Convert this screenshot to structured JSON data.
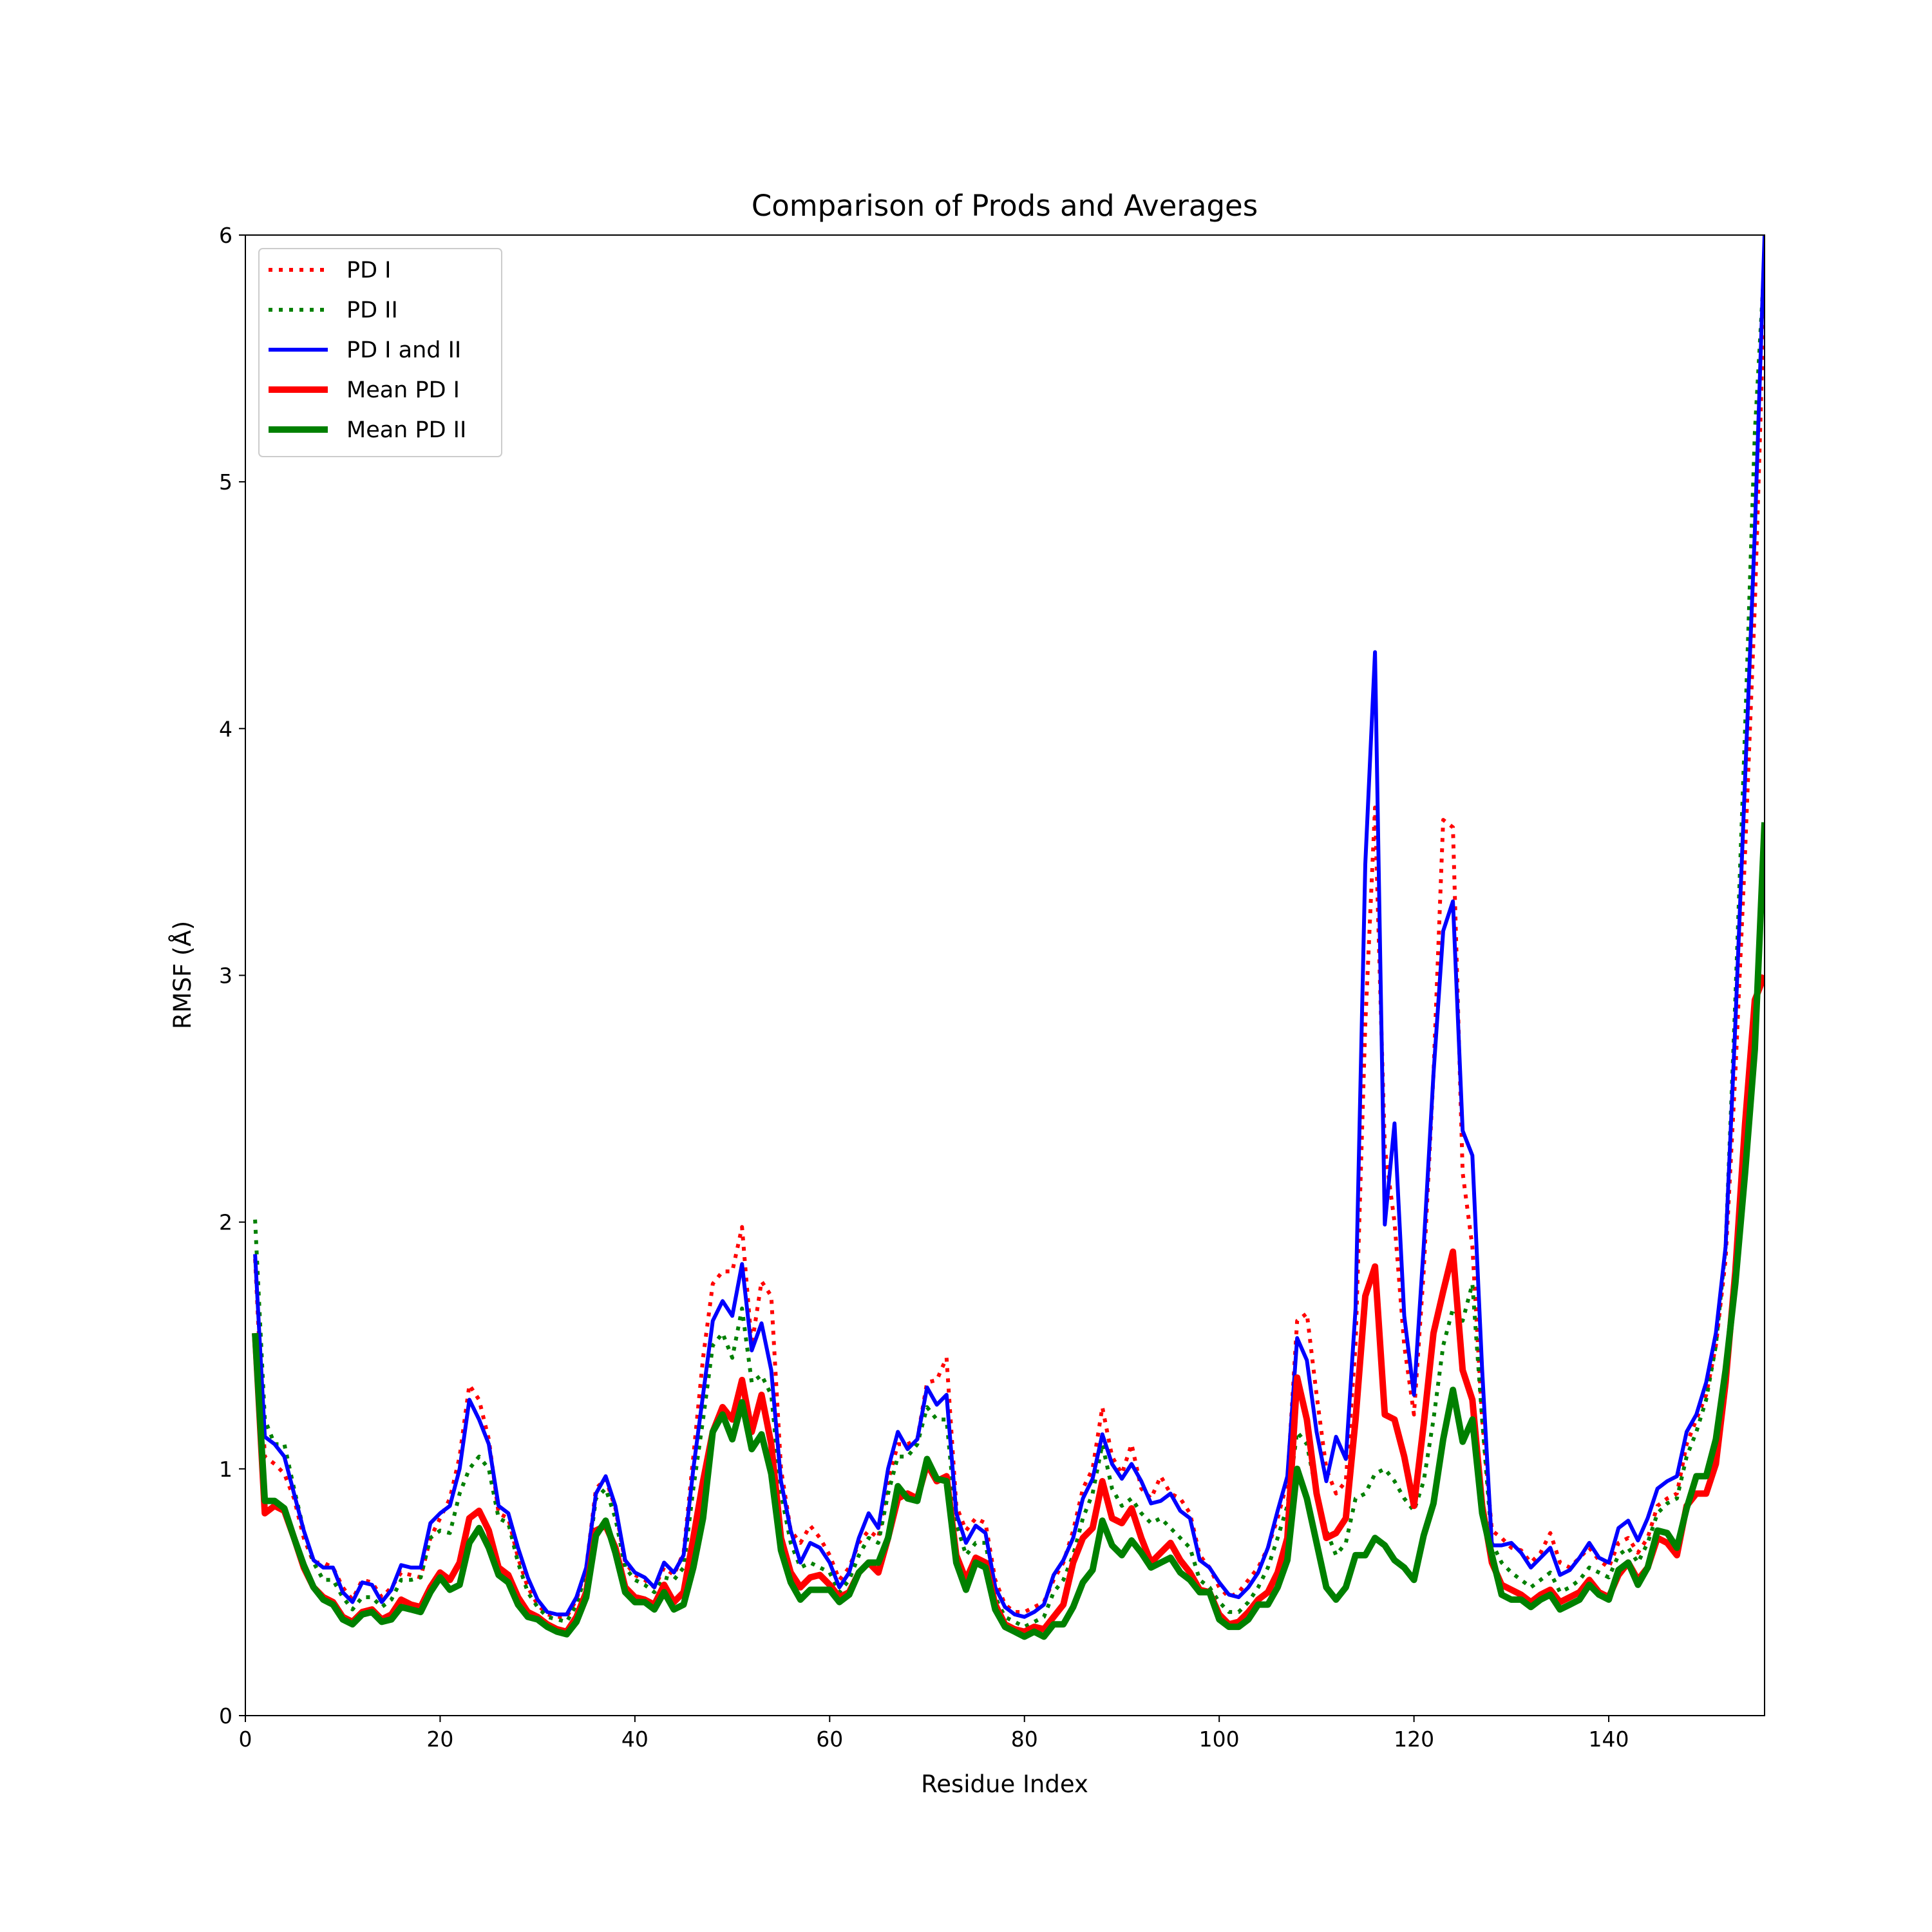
{
  "chart_data": {
    "type": "line",
    "title": "Comparison of Prods and Averages",
    "xlabel": "Residue Index",
    "ylabel": "RMSF (Å)",
    "xlim": [
      0,
      156
    ],
    "ylim": [
      0,
      6
    ],
    "xticks": [
      0,
      20,
      40,
      60,
      80,
      100,
      120,
      140
    ],
    "yticks": [
      0,
      1,
      2,
      3,
      4,
      5,
      6
    ],
    "grid": false,
    "legend_position": "top-left",
    "x_start": 1,
    "series": [
      {
        "name": "PD I",
        "color": "#ff0000",
        "style": "dotted",
        "width": "thin",
        "values": [
          1.85,
          1.05,
          1.02,
          0.98,
          0.88,
          0.72,
          0.62,
          0.62,
          0.6,
          0.52,
          0.47,
          0.55,
          0.54,
          0.48,
          0.52,
          0.58,
          0.57,
          0.56,
          0.72,
          0.8,
          0.88,
          1.05,
          1.34,
          1.28,
          1.12,
          0.82,
          0.8,
          0.64,
          0.52,
          0.45,
          0.41,
          0.4,
          0.4,
          0.47,
          0.6,
          0.92,
          0.96,
          0.84,
          0.62,
          0.57,
          0.55,
          0.52,
          0.6,
          0.57,
          0.66,
          1.05,
          1.45,
          1.75,
          1.8,
          1.8,
          1.98,
          1.5,
          1.76,
          1.7,
          1.0,
          0.75,
          0.7,
          0.77,
          0.72,
          0.65,
          0.55,
          0.6,
          0.7,
          0.75,
          0.72,
          0.95,
          1.1,
          1.1,
          1.12,
          1.35,
          1.36,
          1.45,
          0.85,
          0.75,
          0.8,
          0.78,
          0.55,
          0.45,
          0.42,
          0.42,
          0.44,
          0.46,
          0.55,
          0.62,
          0.75,
          0.92,
          1.0,
          1.25,
          1.05,
          0.98,
          1.1,
          0.92,
          0.88,
          0.97,
          0.9,
          0.88,
          0.82,
          0.65,
          0.6,
          0.52,
          0.48,
          0.5,
          0.55,
          0.6,
          0.68,
          0.8,
          0.95,
          1.6,
          1.63,
          1.3,
          1.0,
          0.9,
          0.95,
          1.5,
          2.8,
          3.68,
          2.3,
          2.0,
          1.5,
          1.22,
          1.8,
          2.6,
          3.63,
          3.6,
          2.2,
          1.9,
          1.2,
          0.75,
          0.72,
          0.68,
          0.67,
          0.62,
          0.66,
          0.74,
          0.62,
          0.6,
          0.64,
          0.68,
          0.63,
          0.6,
          0.7,
          0.72,
          0.66,
          0.72,
          0.85,
          0.88,
          0.9,
          1.1,
          1.2,
          1.3,
          1.5,
          1.85,
          2.6,
          3.5,
          4.5,
          5.8
        ]
      },
      {
        "name": "PD II",
        "color": "#008000",
        "style": "dotted",
        "width": "thin",
        "values": [
          2.01,
          1.2,
          1.1,
          1.1,
          0.92,
          0.75,
          0.62,
          0.55,
          0.55,
          0.48,
          0.43,
          0.48,
          0.48,
          0.44,
          0.47,
          0.55,
          0.55,
          0.56,
          0.72,
          0.75,
          0.74,
          0.9,
          1.0,
          1.05,
          1.0,
          0.8,
          0.78,
          0.62,
          0.5,
          0.44,
          0.4,
          0.39,
          0.38,
          0.45,
          0.58,
          0.88,
          0.92,
          0.8,
          0.6,
          0.55,
          0.53,
          0.5,
          0.56,
          0.55,
          0.6,
          0.92,
          1.2,
          1.5,
          1.55,
          1.45,
          1.65,
          1.35,
          1.38,
          1.3,
          0.9,
          0.7,
          0.6,
          0.62,
          0.6,
          0.58,
          0.5,
          0.55,
          0.65,
          0.72,
          0.7,
          0.9,
          1.05,
          1.05,
          1.1,
          1.25,
          1.2,
          1.2,
          0.78,
          0.65,
          0.7,
          0.7,
          0.48,
          0.4,
          0.38,
          0.36,
          0.38,
          0.4,
          0.5,
          0.55,
          0.65,
          0.8,
          0.9,
          1.1,
          0.92,
          0.85,
          0.88,
          0.82,
          0.78,
          0.8,
          0.76,
          0.72,
          0.68,
          0.55,
          0.52,
          0.46,
          0.42,
          0.42,
          0.46,
          0.52,
          0.6,
          0.72,
          0.85,
          1.15,
          1.1,
          0.9,
          0.75,
          0.65,
          0.7,
          0.88,
          0.9,
          0.98,
          1.0,
          0.95,
          0.88,
          0.83,
          0.95,
          1.2,
          1.5,
          1.65,
          1.6,
          1.75,
          1.2,
          0.7,
          0.62,
          0.58,
          0.55,
          0.52,
          0.55,
          0.58,
          0.5,
          0.52,
          0.55,
          0.6,
          0.58,
          0.56,
          0.65,
          0.68,
          0.62,
          0.7,
          0.82,
          0.86,
          0.88,
          1.05,
          1.15,
          1.28,
          1.5,
          1.9,
          2.9,
          4.0,
          5.2,
          5.9
        ]
      },
      {
        "name": "PD I and II",
        "color": "#0000ff",
        "style": "solid",
        "width": "medium",
        "values": [
          1.87,
          1.13,
          1.1,
          1.05,
          0.9,
          0.75,
          0.63,
          0.6,
          0.6,
          0.5,
          0.46,
          0.54,
          0.53,
          0.46,
          0.51,
          0.61,
          0.6,
          0.6,
          0.78,
          0.82,
          0.85,
          1.0,
          1.28,
          1.2,
          1.1,
          0.85,
          0.82,
          0.68,
          0.56,
          0.47,
          0.42,
          0.41,
          0.41,
          0.48,
          0.6,
          0.9,
          0.97,
          0.85,
          0.63,
          0.58,
          0.56,
          0.52,
          0.62,
          0.58,
          0.65,
          1.0,
          1.3,
          1.6,
          1.68,
          1.62,
          1.83,
          1.48,
          1.59,
          1.4,
          0.95,
          0.75,
          0.62,
          0.7,
          0.68,
          0.62,
          0.52,
          0.58,
          0.72,
          0.82,
          0.76,
          1.0,
          1.15,
          1.08,
          1.12,
          1.33,
          1.26,
          1.3,
          0.82,
          0.7,
          0.77,
          0.74,
          0.52,
          0.44,
          0.41,
          0.4,
          0.42,
          0.45,
          0.57,
          0.63,
          0.72,
          0.88,
          0.96,
          1.14,
          1.02,
          0.96,
          1.02,
          0.95,
          0.86,
          0.87,
          0.9,
          0.83,
          0.8,
          0.63,
          0.6,
          0.54,
          0.49,
          0.48,
          0.52,
          0.58,
          0.68,
          0.83,
          0.97,
          1.53,
          1.44,
          1.15,
          0.95,
          1.13,
          1.04,
          1.65,
          3.45,
          4.31,
          1.99,
          2.4,
          1.62,
          1.3,
          1.9,
          2.6,
          3.18,
          3.3,
          2.37,
          2.27,
          1.4,
          0.69,
          0.69,
          0.7,
          0.66,
          0.6,
          0.64,
          0.68,
          0.57,
          0.59,
          0.64,
          0.7,
          0.64,
          0.62,
          0.76,
          0.79,
          0.71,
          0.8,
          0.92,
          0.95,
          0.97,
          1.15,
          1.22,
          1.35,
          1.55,
          1.9,
          2.8,
          3.8,
          4.8,
          6.0
        ]
      },
      {
        "name": "Mean PD I",
        "color": "#ff0000",
        "style": "solid",
        "width": "thick",
        "values": [
          1.55,
          0.82,
          0.85,
          0.83,
          0.72,
          0.6,
          0.52,
          0.48,
          0.46,
          0.4,
          0.38,
          0.42,
          0.43,
          0.39,
          0.41,
          0.47,
          0.45,
          0.44,
          0.52,
          0.58,
          0.55,
          0.62,
          0.8,
          0.83,
          0.75,
          0.6,
          0.57,
          0.48,
          0.42,
          0.4,
          0.37,
          0.35,
          0.34,
          0.4,
          0.5,
          0.75,
          0.77,
          0.68,
          0.52,
          0.48,
          0.47,
          0.45,
          0.53,
          0.46,
          0.5,
          0.72,
          0.95,
          1.15,
          1.25,
          1.2,
          1.36,
          1.15,
          1.3,
          1.1,
          0.72,
          0.58,
          0.52,
          0.56,
          0.57,
          0.53,
          0.48,
          0.5,
          0.58,
          0.62,
          0.58,
          0.72,
          0.88,
          0.9,
          0.88,
          1.02,
          0.95,
          0.97,
          0.65,
          0.55,
          0.64,
          0.62,
          0.45,
          0.37,
          0.35,
          0.34,
          0.36,
          0.35,
          0.4,
          0.45,
          0.62,
          0.72,
          0.76,
          0.95,
          0.8,
          0.78,
          0.84,
          0.72,
          0.62,
          0.66,
          0.7,
          0.63,
          0.58,
          0.51,
          0.5,
          0.41,
          0.37,
          0.38,
          0.42,
          0.47,
          0.5,
          0.58,
          0.72,
          1.37,
          1.2,
          0.9,
          0.72,
          0.74,
          0.8,
          1.2,
          1.7,
          1.82,
          1.22,
          1.2,
          1.05,
          0.85,
          1.18,
          1.55,
          1.72,
          1.88,
          1.4,
          1.28,
          0.85,
          0.62,
          0.53,
          0.51,
          0.49,
          0.46,
          0.49,
          0.51,
          0.46,
          0.48,
          0.5,
          0.55,
          0.5,
          0.48,
          0.57,
          0.62,
          0.55,
          0.6,
          0.72,
          0.7,
          0.65,
          0.85,
          0.9,
          0.9,
          1.02,
          1.35,
          1.8,
          2.4,
          2.9,
          3.0
        ]
      },
      {
        "name": "Mean PD II",
        "color": "#008000",
        "style": "solid",
        "width": "thick",
        "values": [
          1.55,
          0.87,
          0.87,
          0.84,
          0.72,
          0.61,
          0.52,
          0.47,
          0.45,
          0.39,
          0.37,
          0.41,
          0.42,
          0.38,
          0.39,
          0.44,
          0.43,
          0.42,
          0.5,
          0.56,
          0.51,
          0.53,
          0.7,
          0.76,
          0.68,
          0.57,
          0.54,
          0.45,
          0.4,
          0.39,
          0.36,
          0.34,
          0.33,
          0.38,
          0.48,
          0.73,
          0.79,
          0.66,
          0.5,
          0.46,
          0.46,
          0.43,
          0.5,
          0.43,
          0.45,
          0.6,
          0.8,
          1.15,
          1.22,
          1.12,
          1.27,
          1.08,
          1.14,
          0.98,
          0.67,
          0.54,
          0.47,
          0.51,
          0.51,
          0.51,
          0.46,
          0.49,
          0.58,
          0.62,
          0.62,
          0.72,
          0.93,
          0.88,
          0.87,
          1.04,
          0.96,
          0.95,
          0.62,
          0.51,
          0.62,
          0.6,
          0.43,
          0.36,
          0.34,
          0.32,
          0.34,
          0.32,
          0.37,
          0.37,
          0.44,
          0.54,
          0.59,
          0.79,
          0.69,
          0.65,
          0.71,
          0.66,
          0.6,
          0.62,
          0.64,
          0.58,
          0.55,
          0.5,
          0.5,
          0.39,
          0.36,
          0.36,
          0.39,
          0.45,
          0.45,
          0.52,
          0.63,
          1.0,
          0.88,
          0.7,
          0.52,
          0.47,
          0.52,
          0.65,
          0.65,
          0.72,
          0.69,
          0.63,
          0.6,
          0.55,
          0.73,
          0.86,
          1.12,
          1.32,
          1.11,
          1.2,
          0.82,
          0.65,
          0.49,
          0.47,
          0.47,
          0.44,
          0.47,
          0.49,
          0.43,
          0.45,
          0.47,
          0.53,
          0.49,
          0.47,
          0.59,
          0.62,
          0.53,
          0.6,
          0.75,
          0.74,
          0.68,
          0.84,
          0.97,
          0.97,
          1.12,
          1.4,
          1.75,
          2.2,
          2.7,
          3.62
        ]
      }
    ]
  }
}
